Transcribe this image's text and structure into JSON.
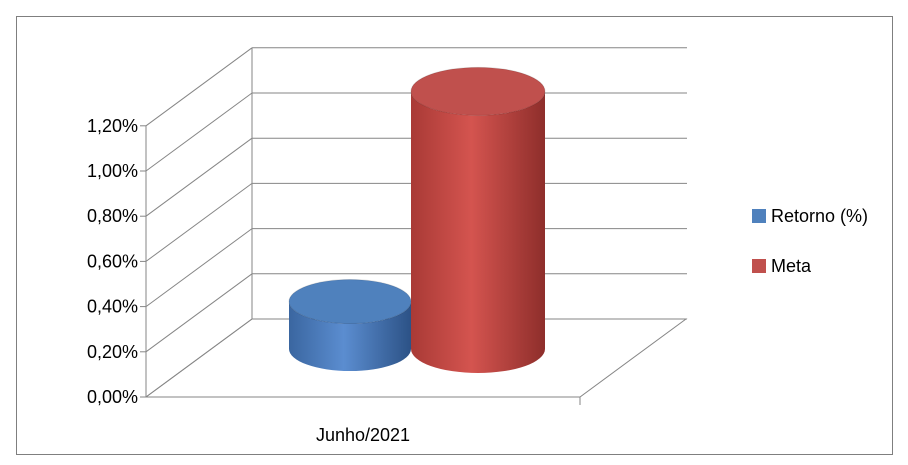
{
  "chart_data": {
    "type": "bar",
    "categories": [
      "Junho/2021"
    ],
    "series": [
      {
        "name": "Retorno (%)",
        "values": [
          0.21
        ],
        "color": "#4F81BD"
      },
      {
        "name": "Meta",
        "values": [
          1.14
        ],
        "color": "#C0504D"
      }
    ],
    "y_ticks": [
      "0,00%",
      "0,20%",
      "0,40%",
      "0,60%",
      "0,80%",
      "1,00%",
      "1,20%"
    ],
    "ylim": [
      0,
      1.2
    ],
    "y_unit": "%",
    "grid": true,
    "legend_position": "right",
    "style": "3d-cylinder"
  }
}
